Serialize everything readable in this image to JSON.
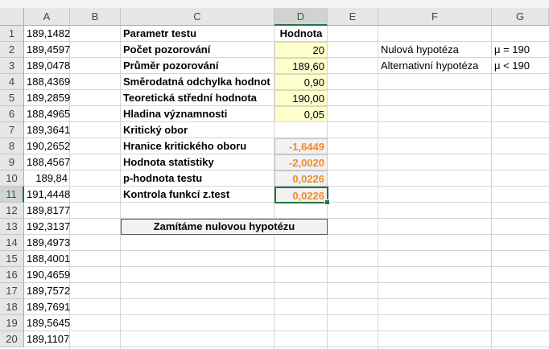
{
  "columns": [
    "A",
    "B",
    "C",
    "D",
    "E",
    "F",
    "G"
  ],
  "rows": [
    "1",
    "2",
    "3",
    "4",
    "5",
    "6",
    "7",
    "8",
    "9",
    "10",
    "11",
    "12",
    "13",
    "14",
    "15",
    "16",
    "17",
    "18",
    "19",
    "20"
  ],
  "colA": [
    "189,1482",
    "189,4597",
    "189,0478",
    "188,4369",
    "189,2859",
    "188,4965",
    "189,3641",
    "190,2652",
    "188,4567",
    "189,84",
    "191,4448",
    "189,8177",
    "192,3137",
    "189,4973",
    "188,4001",
    "190,4659",
    "189,7572",
    "189,7691",
    "189,5645",
    "189,1107"
  ],
  "params": {
    "header_label": "Parametr testu",
    "header_value": "Hodnota",
    "items": [
      {
        "label": "Počet pozorování",
        "value": "20"
      },
      {
        "label": "Průměr pozorování",
        "value": "189,60"
      },
      {
        "label": "Směrodatná odchylka hodnot",
        "value": "0,90"
      },
      {
        "label": "Teoretická střední hodnota",
        "value": "190,00"
      },
      {
        "label": "Hladina významnosti",
        "value": "0,05"
      }
    ],
    "kriticky_obor": "Kritický obor",
    "results": [
      {
        "label": "Hranice kritického oboru",
        "value": "-1,6449"
      },
      {
        "label": "Hodnota statistiky",
        "value": "-2,0020"
      },
      {
        "label": "p-hodnota testu",
        "value": "0,0226"
      },
      {
        "label": "Kontrola funkcí z.test",
        "value": "0,0226"
      }
    ]
  },
  "hypotheses": [
    {
      "label": "Nulová hypotéza",
      "value": "μ = 190"
    },
    {
      "label": "Alternativní hypotéza",
      "value": "μ < 190"
    }
  ],
  "conclusion": "Zamítáme nulovou hypotézu",
  "active_cell": "D11",
  "colors": {
    "accent": "#217346",
    "input_fill": "#ffffcc",
    "result_text": "#f08c2a"
  }
}
